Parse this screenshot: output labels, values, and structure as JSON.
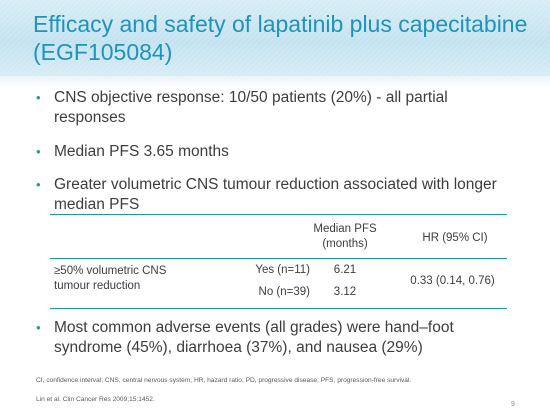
{
  "slide": {
    "title": "Efficacy and safety of lapatinib plus capecitabine (EGF105084)",
    "bullets": [
      "CNS objective response: 10/50 patients (20%) - all partial responses",
      "Median PFS 3.65 months",
      "Greater volumetric CNS tumour reduction associated with longer median PFS",
      "Most common adverse events (all grades) were hand–foot syndrome (45%), diarrhoea (37%), and nausea (29%)"
    ],
    "bullet_symbol": "•",
    "table": {
      "headers": [
        "Median PFS (months)",
        "HR (95% CI)"
      ],
      "row_label": "≥50% volumetric CNS tumour reduction",
      "groups": [
        {
          "label": "Yes (n=11)",
          "median_pfs": "6.21"
        },
        {
          "label": "No (n=39)",
          "median_pfs": "3.12"
        }
      ],
      "hr": "0.33 (0.14, 0.76)"
    },
    "footnote": "CI, confidence interval; CNS, central nervous system; HR, hazard ratio; PD, progressive disease; PFS, progression-free survival.",
    "reference": "Lin et al. Clin Cancer Res 2009;15:1452.",
    "page_number": "9"
  },
  "colors": {
    "accent": "#1f93ba",
    "text": "#3d3d3d",
    "header_band": "#c3e2f0"
  }
}
